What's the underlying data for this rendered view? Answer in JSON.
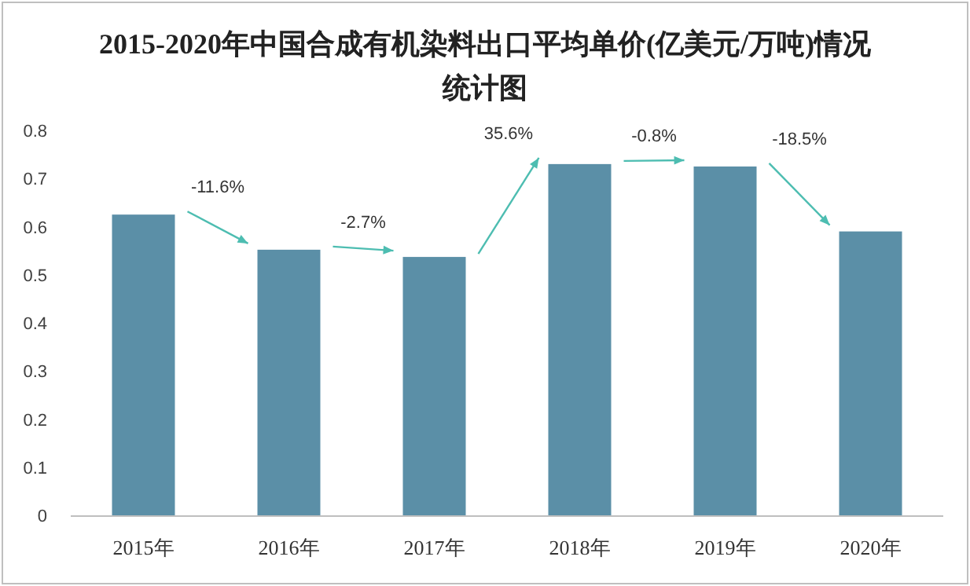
{
  "chart_data": {
    "type": "bar",
    "title": "2015-2020年中国合成有机染料出口平均单价(亿美元/万吨)情况统计图",
    "categories": [
      "2015年",
      "2016年",
      "2017年",
      "2018年",
      "2019年",
      "2020年"
    ],
    "values": [
      0.625,
      0.552,
      0.537,
      0.73,
      0.725,
      0.59
    ],
    "color": "#5b8fa7",
    "ylim": [
      0,
      0.8
    ],
    "yticks": [
      0,
      0.1,
      0.2,
      0.3,
      0.4,
      0.5,
      0.6,
      0.7,
      0.8
    ],
    "grid": false,
    "annotations": [
      "-11.6%",
      "-2.7%",
      "35.6%",
      "-0.8%",
      "-18.5%"
    ]
  }
}
